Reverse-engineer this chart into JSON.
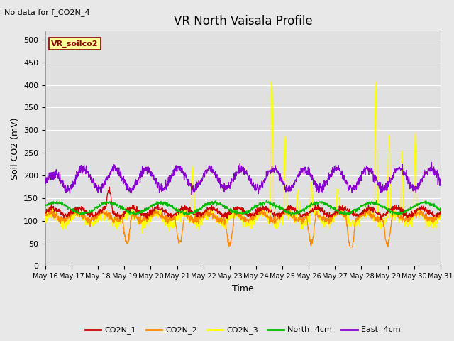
{
  "title": "VR North Vaisala Profile",
  "subtitle": "No data for f_CO2N_4",
  "ylabel": "Soil CO2 (mV)",
  "xlabel": "Time",
  "box_label": "VR_soilco2",
  "ylim": [
    0,
    520
  ],
  "yticks": [
    0,
    50,
    100,
    150,
    200,
    250,
    300,
    350,
    400,
    450,
    500
  ],
  "background_color": "#e0e0e0",
  "fig_background": "#e8e8e8",
  "series_colors": {
    "CO2N_1": "#cc0000",
    "CO2N_2": "#ff8800",
    "CO2N_3": "#ffff00",
    "North_4cm": "#00bb00",
    "East_4cm": "#8800cc"
  },
  "legend_labels": [
    "CO2N_1",
    "CO2N_2",
    "CO2N_3",
    "North -4cm",
    "East -4cm"
  ],
  "n_days": 15,
  "start_day": 16,
  "seed": 12345
}
